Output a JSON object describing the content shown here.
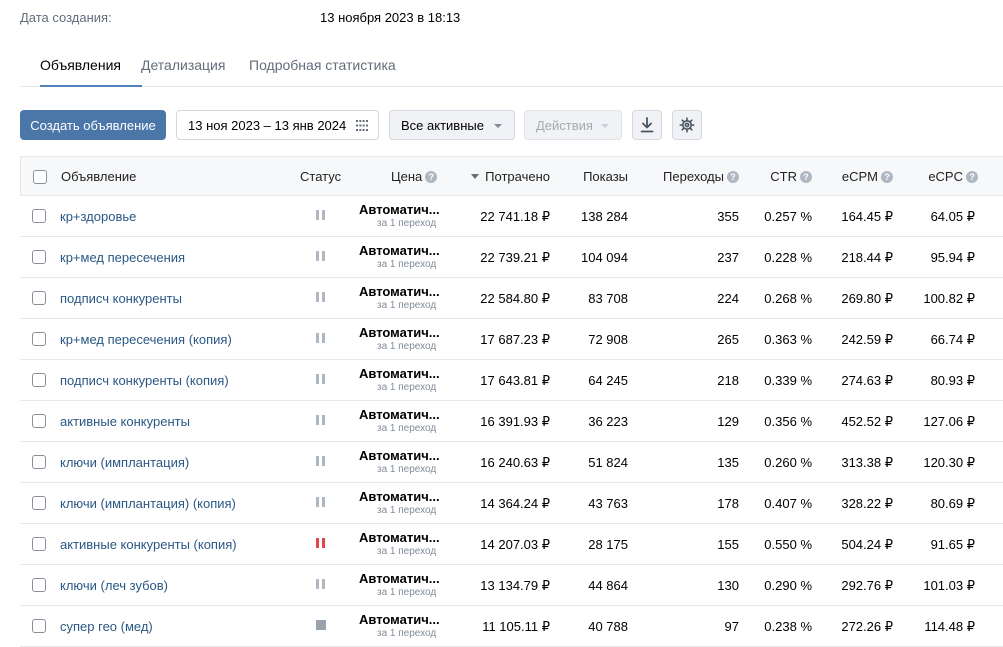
{
  "created": {
    "label": "Дата создания:",
    "value": "13 ноября 2023 в 18:13"
  },
  "tabs": [
    {
      "label": "Объявления",
      "active": true
    },
    {
      "label": "Детализация",
      "active": false
    },
    {
      "label": "Подробная статистика",
      "active": false
    }
  ],
  "toolbar": {
    "create_label": "Создать объявление",
    "date_range": "13 ноя 2023 – 13 янв 2024",
    "filter_label": "Все активные",
    "actions_label": "Действия",
    "download_icon": "download-icon",
    "settings_icon": "gear-icon"
  },
  "table": {
    "headers": {
      "ad": "Объявление",
      "status": "Статус",
      "price": "Цена",
      "spent": "Потрачено",
      "shows": "Показы",
      "clicks": "Переходы",
      "ctr": "CTR",
      "ecpm": "eCPM",
      "ecpc": "eCPC"
    },
    "sorted_by": "spent",
    "rows": [
      {
        "name": "кр+здоровье",
        "status": "paused",
        "price": "Автоматич...",
        "price_note": "за 1 переход",
        "spent": "22 741.18 ₽",
        "shows": "138 284",
        "clicks": "355",
        "ctr": "0.257 %",
        "ecpm": "164.45 ₽",
        "ecpc": "64.05 ₽"
      },
      {
        "name": "кр+мед пересечения",
        "status": "paused",
        "price": "Автоматич...",
        "price_note": "за 1 переход",
        "spent": "22 739.21 ₽",
        "shows": "104 094",
        "clicks": "237",
        "ctr": "0.228 %",
        "ecpm": "218.44 ₽",
        "ecpc": "95.94 ₽"
      },
      {
        "name": "подписч конкуренты",
        "status": "paused",
        "price": "Автоматич...",
        "price_note": "за 1 переход",
        "spent": "22 584.80 ₽",
        "shows": "83 708",
        "clicks": "224",
        "ctr": "0.268 %",
        "ecpm": "269.80 ₽",
        "ecpc": "100.82 ₽"
      },
      {
        "name": "кр+мед пересечения (копия)",
        "status": "paused",
        "price": "Автоматич...",
        "price_note": "за 1 переход",
        "spent": "17 687.23 ₽",
        "shows": "72 908",
        "clicks": "265",
        "ctr": "0.363 %",
        "ecpm": "242.59 ₽",
        "ecpc": "66.74 ₽"
      },
      {
        "name": "подписч конкуренты (копия)",
        "status": "paused",
        "price": "Автоматич...",
        "price_note": "за 1 переход",
        "spent": "17 643.81 ₽",
        "shows": "64 245",
        "clicks": "218",
        "ctr": "0.339 %",
        "ecpm": "274.63 ₽",
        "ecpc": "80.93 ₽"
      },
      {
        "name": "активные конкуренты",
        "status": "paused",
        "price": "Автоматич...",
        "price_note": "за 1 переход",
        "spent": "16 391.93 ₽",
        "shows": "36 223",
        "clicks": "129",
        "ctr": "0.356 %",
        "ecpm": "452.52 ₽",
        "ecpc": "127.06 ₽"
      },
      {
        "name": "ключи (имплантация)",
        "status": "paused",
        "price": "Автоматич...",
        "price_note": "за 1 переход",
        "spent": "16 240.63 ₽",
        "shows": "51 824",
        "clicks": "135",
        "ctr": "0.260 %",
        "ecpm": "313.38 ₽",
        "ecpc": "120.30 ₽"
      },
      {
        "name": "ключи (имплантация) (копия)",
        "status": "paused",
        "price": "Автоматич...",
        "price_note": "за 1 переход",
        "spent": "14 364.24 ₽",
        "shows": "43 763",
        "clicks": "178",
        "ctr": "0.407 %",
        "ecpm": "328.22 ₽",
        "ecpc": "80.69 ₽"
      },
      {
        "name": "активные конкуренты (копия)",
        "status": "paused-red",
        "price": "Автоматич...",
        "price_note": "за 1 переход",
        "spent": "14 207.03 ₽",
        "shows": "28 175",
        "clicks": "155",
        "ctr": "0.550 %",
        "ecpm": "504.24 ₽",
        "ecpc": "91.65 ₽"
      },
      {
        "name": "ключи (леч зубов)",
        "status": "paused",
        "price": "Автоматич...",
        "price_note": "за 1 переход",
        "spent": "13 134.79 ₽",
        "shows": "44 864",
        "clicks": "130",
        "ctr": "0.290 %",
        "ecpm": "292.76 ₽",
        "ecpc": "101.03 ₽"
      },
      {
        "name": "супер гео (мед)",
        "status": "stopped",
        "price": "Автоматич...",
        "price_note": "за 1 переход",
        "spent": "11 105.11 ₽",
        "shows": "40 788",
        "clicks": "97",
        "ctr": "0.238 %",
        "ecpm": "272.26 ₽",
        "ecpc": "114.48 ₽"
      }
    ]
  },
  "colors": {
    "primary": "#4a76a8",
    "link": "#2a5885",
    "paused_red": "#e64646"
  }
}
